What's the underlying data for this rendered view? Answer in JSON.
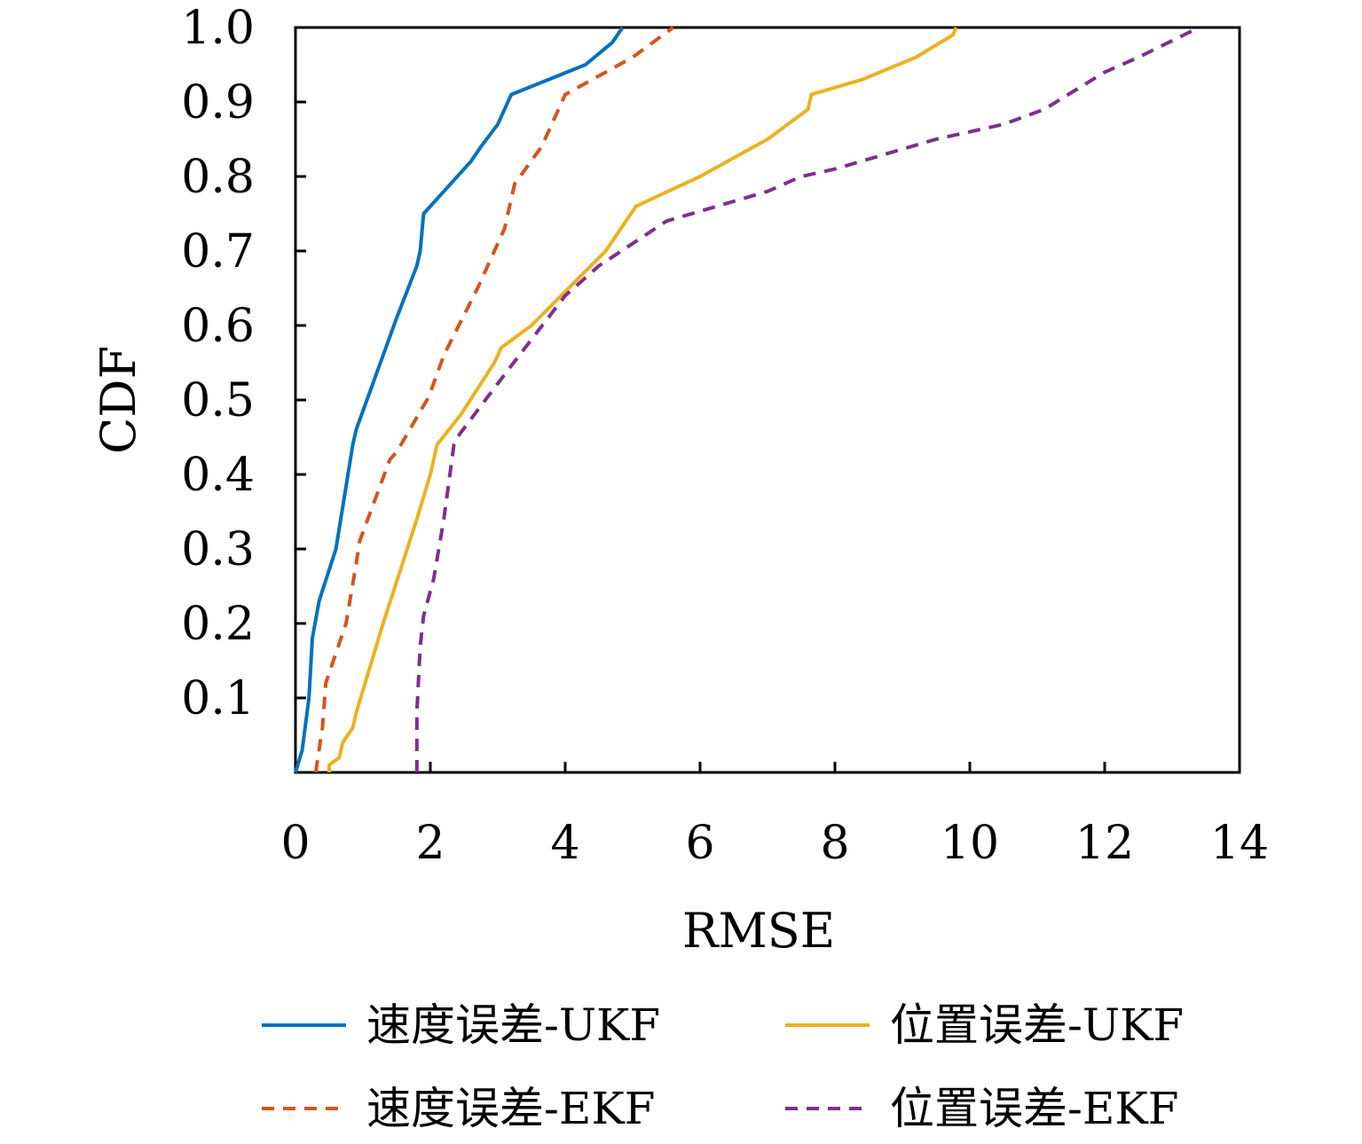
{
  "chart_data": {
    "type": "line",
    "title": "",
    "xlabel": "RMSE",
    "ylabel": "CDF",
    "xlim": [
      0,
      14
    ],
    "ylim": [
      0,
      1.0
    ],
    "x_ticks": [
      "0",
      "2",
      "4",
      "6",
      "8",
      "10",
      "12",
      "14"
    ],
    "y_ticks": [
      "0.1",
      "0.2",
      "0.3",
      "0.4",
      "0.5",
      "0.6",
      "0.7",
      "0.8",
      "0.9",
      "1.0"
    ],
    "grid": false,
    "legend_position": "bottom",
    "series": [
      {
        "name": "速度误差-UKF",
        "color": "#0072BD",
        "dash": "solid",
        "points": [
          [
            0,
            0
          ],
          [
            0.1,
            0.03
          ],
          [
            0.2,
            0.1
          ],
          [
            0.25,
            0.18
          ],
          [
            0.35,
            0.23
          ],
          [
            0.6,
            0.3
          ],
          [
            0.85,
            0.44
          ],
          [
            0.9,
            0.46
          ],
          [
            1.5,
            0.61
          ],
          [
            1.8,
            0.68
          ],
          [
            1.85,
            0.7
          ],
          [
            1.9,
            0.75
          ],
          [
            2.2,
            0.78
          ],
          [
            2.6,
            0.82
          ],
          [
            2.75,
            0.84
          ],
          [
            3.0,
            0.87
          ],
          [
            3.1,
            0.89
          ],
          [
            3.2,
            0.91
          ],
          [
            4.3,
            0.95
          ],
          [
            4.7,
            0.98
          ],
          [
            4.85,
            1.0
          ]
        ]
      },
      {
        "name": "位置误差-UKF",
        "color": "#EDB120",
        "dash": "solid",
        "points": [
          [
            0.5,
            0
          ],
          [
            0.5,
            0.01
          ],
          [
            0.65,
            0.02
          ],
          [
            0.7,
            0.04
          ],
          [
            0.85,
            0.06
          ],
          [
            0.9,
            0.08
          ],
          [
            1.3,
            0.2
          ],
          [
            1.8,
            0.34
          ],
          [
            2.0,
            0.4
          ],
          [
            2.1,
            0.44
          ],
          [
            2.45,
            0.48
          ],
          [
            2.95,
            0.55
          ],
          [
            3.05,
            0.57
          ],
          [
            3.5,
            0.6
          ],
          [
            4.6,
            0.7
          ],
          [
            4.9,
            0.74
          ],
          [
            5.05,
            0.76
          ],
          [
            6.0,
            0.8
          ],
          [
            7.0,
            0.85
          ],
          [
            7.6,
            0.89
          ],
          [
            7.65,
            0.91
          ],
          [
            8.4,
            0.93
          ],
          [
            9.2,
            0.96
          ],
          [
            9.75,
            0.99
          ],
          [
            9.8,
            1.0
          ]
        ]
      },
      {
        "name": "速度误差-EKF",
        "color": "#D95319",
        "dash": "dashed",
        "points": [
          [
            0.3,
            0
          ],
          [
            0.4,
            0.06
          ],
          [
            0.45,
            0.12
          ],
          [
            0.75,
            0.2
          ],
          [
            0.9,
            0.28
          ],
          [
            0.95,
            0.31
          ],
          [
            1.4,
            0.42
          ],
          [
            1.5,
            0.43
          ],
          [
            1.95,
            0.5
          ],
          [
            2.0,
            0.51
          ],
          [
            2.2,
            0.56
          ],
          [
            2.7,
            0.65
          ],
          [
            3.1,
            0.73
          ],
          [
            3.25,
            0.79
          ],
          [
            3.65,
            0.84
          ],
          [
            4.0,
            0.91
          ],
          [
            4.4,
            0.93
          ],
          [
            5.0,
            0.96
          ],
          [
            5.6,
            1.0
          ]
        ]
      },
      {
        "name": "位置误差-EKF",
        "color": "#7E2F8E",
        "dash": "dashed",
        "points": [
          [
            1.8,
            0
          ],
          [
            1.8,
            0.08
          ],
          [
            1.85,
            0.17
          ],
          [
            1.9,
            0.21
          ],
          [
            2.05,
            0.26
          ],
          [
            2.2,
            0.34
          ],
          [
            2.35,
            0.44
          ],
          [
            2.4,
            0.45
          ],
          [
            2.65,
            0.48
          ],
          [
            3.15,
            0.54
          ],
          [
            4.0,
            0.64
          ],
          [
            4.5,
            0.68
          ],
          [
            5.0,
            0.71
          ],
          [
            5.5,
            0.74
          ],
          [
            7.0,
            0.78
          ],
          [
            7.5,
            0.8
          ],
          [
            8.0,
            0.81
          ],
          [
            9.5,
            0.85
          ],
          [
            10.5,
            0.87
          ],
          [
            11.1,
            0.89
          ],
          [
            12.0,
            0.94
          ],
          [
            12.5,
            0.96
          ],
          [
            13.4,
            1.0
          ]
        ]
      }
    ]
  }
}
